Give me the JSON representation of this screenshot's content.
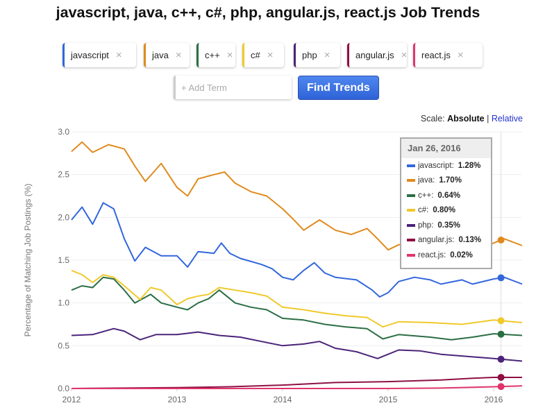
{
  "title": "javascript, java, c++, c#, php, angular.js, react.js Job Trends",
  "terms": [
    {
      "label": "javascript",
      "color": "#3366dd"
    },
    {
      "label": "java",
      "color": "#e08a1e"
    },
    {
      "label": "c++",
      "color": "#2a6e44"
    },
    {
      "label": "c#",
      "color": "#f0c92a"
    },
    {
      "label": "php",
      "color": "#4b2379"
    },
    {
      "label": "angular.js",
      "color": "#8e1044"
    },
    {
      "label": "react.js",
      "color": "#e0356a"
    }
  ],
  "remove_icon": "×",
  "add_placeholder": "+ Add Term",
  "find_button": "Find Trends",
  "scale": {
    "label": "Scale:",
    "absolute": "Absolute",
    "sep": "|",
    "relative": "Relative"
  },
  "tooltip": {
    "date": "Jan 26, 2016",
    "rows": [
      {
        "name": "javascript",
        "value": "1.28%"
      },
      {
        "name": "java",
        "value": "1.70%"
      },
      {
        "name": "c++",
        "value": "0.64%"
      },
      {
        "name": "c#",
        "value": "0.80%"
      },
      {
        "name": "php",
        "value": "0.35%"
      },
      {
        "name": "angular.js",
        "value": "0.13%"
      },
      {
        "name": "react.js",
        "value": "0.02%"
      }
    ]
  },
  "chart_data": {
    "type": "line",
    "title": "javascript, java, c++, c#, php, angular.js, react.js Job Trends",
    "xlabel": "",
    "ylabel": "Percentage of Matching Job Postings (%)",
    "xlim": [
      2012,
      2016.27
    ],
    "ylim": [
      0,
      3
    ],
    "xticks": [
      "2012",
      "2013",
      "2014",
      "2015",
      "2016"
    ],
    "yticks": [
      "0.0",
      "0.5",
      "1.0",
      "1.5",
      "2.0",
      "2.5",
      "3.0"
    ],
    "hover_x": 2016.07,
    "series": [
      {
        "name": "javascript",
        "x": [
          2012,
          2012.1,
          2012.2,
          2012.3,
          2012.4,
          2012.5,
          2012.6,
          2012.7,
          2012.85,
          2013,
          2013.1,
          2013.2,
          2013.35,
          2013.42,
          2013.5,
          2013.6,
          2013.8,
          2013.9,
          2014,
          2014.1,
          2014.2,
          2014.3,
          2014.4,
          2014.5,
          2014.7,
          2014.85,
          2014.92,
          2015,
          2015.1,
          2015.25,
          2015.4,
          2015.5,
          2015.7,
          2015.8,
          2016,
          2016.1,
          2016.27
        ],
        "y": [
          1.97,
          2.12,
          1.92,
          2.17,
          2.1,
          1.75,
          1.49,
          1.65,
          1.55,
          1.55,
          1.42,
          1.6,
          1.58,
          1.7,
          1.58,
          1.52,
          1.45,
          1.4,
          1.3,
          1.27,
          1.38,
          1.47,
          1.35,
          1.3,
          1.27,
          1.15,
          1.07,
          1.12,
          1.25,
          1.3,
          1.27,
          1.22,
          1.27,
          1.22,
          1.28,
          1.3,
          1.22
        ]
      },
      {
        "name": "java",
        "x": [
          2012,
          2012.1,
          2012.2,
          2012.35,
          2012.5,
          2012.6,
          2012.7,
          2012.85,
          2013,
          2013.1,
          2013.2,
          2013.35,
          2013.45,
          2013.55,
          2013.7,
          2013.85,
          2014,
          2014.1,
          2014.2,
          2014.35,
          2014.5,
          2014.65,
          2014.8,
          2014.9,
          2015,
          2015.1,
          2015.5,
          2015.9,
          2016,
          2016.1,
          2016.27
        ],
        "y": [
          2.77,
          2.88,
          2.76,
          2.85,
          2.8,
          2.6,
          2.42,
          2.63,
          2.35,
          2.25,
          2.45,
          2.5,
          2.53,
          2.4,
          2.3,
          2.25,
          2.1,
          1.98,
          1.85,
          1.97,
          1.85,
          1.8,
          1.87,
          1.75,
          1.62,
          1.68,
          1.68,
          1.65,
          1.7,
          1.75,
          1.67
        ]
      },
      {
        "name": "c++",
        "x": [
          2012,
          2012.1,
          2012.2,
          2012.3,
          2012.4,
          2012.5,
          2012.6,
          2012.75,
          2012.85,
          2013,
          2013.1,
          2013.2,
          2013.3,
          2013.4,
          2013.55,
          2013.7,
          2013.85,
          2014,
          2014.2,
          2014.4,
          2014.6,
          2014.8,
          2014.95,
          2015.1,
          2015.4,
          2015.6,
          2015.8,
          2016,
          2016.27
        ],
        "y": [
          1.15,
          1.2,
          1.18,
          1.3,
          1.28,
          1.15,
          1.0,
          1.1,
          1.0,
          0.95,
          0.92,
          1.0,
          1.05,
          1.15,
          1.0,
          0.95,
          0.92,
          0.82,
          0.8,
          0.75,
          0.72,
          0.7,
          0.58,
          0.63,
          0.6,
          0.57,
          0.6,
          0.64,
          0.62
        ]
      },
      {
        "name": "c#",
        "x": [
          2012,
          2012.1,
          2012.2,
          2012.3,
          2012.4,
          2012.5,
          2012.65,
          2012.75,
          2012.85,
          2013,
          2013.1,
          2013.2,
          2013.3,
          2013.4,
          2013.55,
          2013.7,
          2013.85,
          2014,
          2014.2,
          2014.4,
          2014.6,
          2014.8,
          2014.95,
          2015.1,
          2015.4,
          2015.7,
          2016,
          2016.27
        ],
        "y": [
          1.38,
          1.33,
          1.24,
          1.33,
          1.3,
          1.2,
          1.04,
          1.18,
          1.15,
          0.98,
          1.05,
          1.08,
          1.1,
          1.18,
          1.15,
          1.12,
          1.08,
          0.95,
          0.92,
          0.88,
          0.85,
          0.83,
          0.72,
          0.78,
          0.77,
          0.75,
          0.8,
          0.77
        ]
      },
      {
        "name": "php",
        "x": [
          2012,
          2012.2,
          2012.4,
          2012.5,
          2012.65,
          2012.8,
          2013,
          2013.2,
          2013.4,
          2013.6,
          2013.8,
          2014,
          2014.2,
          2014.35,
          2014.5,
          2014.7,
          2014.9,
          2015.1,
          2015.3,
          2015.5,
          2015.8,
          2016,
          2016.27
        ],
        "y": [
          0.62,
          0.63,
          0.7,
          0.67,
          0.57,
          0.63,
          0.63,
          0.66,
          0.62,
          0.6,
          0.55,
          0.5,
          0.52,
          0.55,
          0.47,
          0.43,
          0.35,
          0.45,
          0.44,
          0.4,
          0.37,
          0.35,
          0.32
        ]
      },
      {
        "name": "angular.js",
        "x": [
          2012,
          2013,
          2013.5,
          2014,
          2014.5,
          2015,
          2015.5,
          2015.8,
          2016,
          2016.27
        ],
        "y": [
          0.0,
          0.01,
          0.02,
          0.04,
          0.07,
          0.08,
          0.1,
          0.12,
          0.13,
          0.13
        ]
      },
      {
        "name": "react.js",
        "x": [
          2012,
          2015,
          2015.5,
          2016,
          2016.27
        ],
        "y": [
          0.0,
          0.0,
          0.005,
          0.02,
          0.03
        ]
      }
    ]
  }
}
